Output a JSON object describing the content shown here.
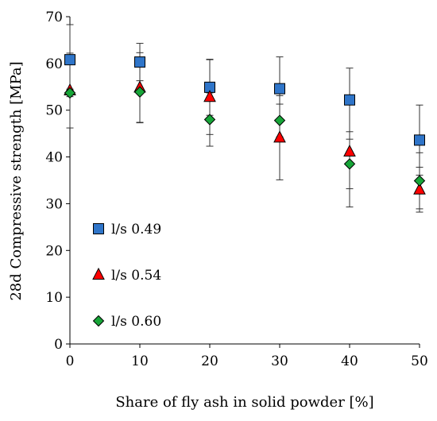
{
  "chart_data": {
    "type": "scatter",
    "xlabel": "Share of fly ash in solid powder [%]",
    "ylabel": "28d Compressive strength [MPa]",
    "xlim": [
      0,
      50
    ],
    "ylim": [
      0,
      70
    ],
    "xticks": [
      0,
      10,
      20,
      30,
      40,
      50
    ],
    "yticks": [
      0,
      10,
      20,
      30,
      40,
      50,
      60,
      70
    ],
    "grid": false,
    "legend_position": "bottom-left",
    "series": [
      {
        "name": "l/s 0.49",
        "marker": "square",
        "color": "#2f75c9",
        "x": [
          0,
          10,
          20,
          30,
          40,
          50
        ],
        "y": [
          60.8,
          60.3,
          54.9,
          54.6,
          52.2,
          43.6
        ],
        "err": [
          7.5,
          4.0,
          6.0,
          6.8,
          6.8,
          7.5
        ]
      },
      {
        "name": "l/s 0.54",
        "marker": "triangle",
        "color": "#ff0000",
        "x": [
          0,
          10,
          20,
          30,
          40,
          50
        ],
        "y": [
          54.2,
          54.8,
          52.8,
          44.1,
          41.1,
          33.0
        ],
        "err": [
          8.0,
          7.5,
          8.0,
          9.0,
          11.8,
          4.8
        ]
      },
      {
        "name": "l/s 0.60",
        "marker": "diamond",
        "color": "#17a538",
        "x": [
          0,
          10,
          20,
          30,
          40,
          50
        ],
        "y": [
          53.7,
          53.9,
          48.0,
          47.8,
          38.5,
          34.9
        ],
        "err": [
          0.8,
          6.5,
          5.7,
          3.5,
          5.3,
          6.0
        ]
      }
    ]
  }
}
